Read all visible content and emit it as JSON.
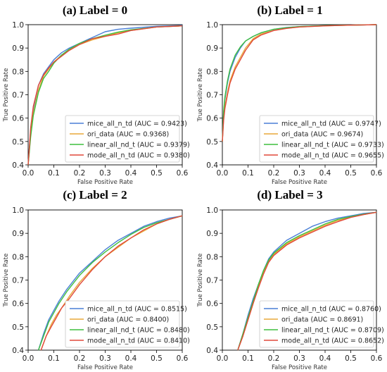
{
  "colors": {
    "mice_all_n_td": "#4a7fd6",
    "ori_data": "#e8a93a",
    "linear_all_nd_t": "#3fbf3f",
    "mode_all_n_td": "#e0483a"
  },
  "chart_data": [
    {
      "type": "line",
      "title": "(a) Label = 0",
      "xlabel": "False Positive Rate",
      "ylabel": "True Positive Rate",
      "xlim": [
        0.0,
        0.6
      ],
      "ylim": [
        0.4,
        1.0
      ],
      "xticks": [
        "0.0",
        "0.1",
        "0.2",
        "0.3",
        "0.4",
        "0.5",
        "0.6"
      ],
      "yticks": [
        "0.4",
        "0.5",
        "0.6",
        "0.7",
        "0.8",
        "0.9",
        "1.0"
      ],
      "legend_position": "lower-right",
      "series": [
        {
          "name": "mice_all_n_td (AUC = 0.9423)",
          "color_key": "mice_all_n_td",
          "x": [
            0.0,
            0.01,
            0.02,
            0.04,
            0.06,
            0.08,
            0.1,
            0.13,
            0.16,
            0.2,
            0.25,
            0.3,
            0.35,
            0.4,
            0.5,
            0.6
          ],
          "y": [
            0.4,
            0.55,
            0.64,
            0.74,
            0.79,
            0.82,
            0.85,
            0.88,
            0.9,
            0.92,
            0.945,
            0.97,
            0.98,
            0.985,
            0.993,
            0.997
          ]
        },
        {
          "name": "ori_data (AUC = 0.9368)",
          "color_key": "ori_data",
          "x": [
            0.0,
            0.01,
            0.02,
            0.04,
            0.06,
            0.08,
            0.1,
            0.13,
            0.16,
            0.2,
            0.25,
            0.3,
            0.35,
            0.4,
            0.5,
            0.6
          ],
          "y": [
            0.4,
            0.53,
            0.62,
            0.72,
            0.78,
            0.81,
            0.84,
            0.87,
            0.89,
            0.915,
            0.935,
            0.95,
            0.965,
            0.975,
            0.99,
            0.995
          ]
        },
        {
          "name": "linear_all_nd_t (AUC = 0.9379)",
          "color_key": "linear_all_nd_t",
          "x": [
            0.0,
            0.01,
            0.02,
            0.04,
            0.06,
            0.08,
            0.1,
            0.13,
            0.16,
            0.2,
            0.25,
            0.3,
            0.35,
            0.4,
            0.5,
            0.6
          ],
          "y": [
            0.4,
            0.52,
            0.61,
            0.71,
            0.77,
            0.8,
            0.835,
            0.87,
            0.895,
            0.92,
            0.94,
            0.955,
            0.968,
            0.978,
            0.99,
            0.995
          ]
        },
        {
          "name": "mode_all_n_td (AUC = 0.9380)",
          "color_key": "mode_all_n_td",
          "x": [
            0.0,
            0.01,
            0.02,
            0.04,
            0.06,
            0.08,
            0.1,
            0.13,
            0.16,
            0.2,
            0.25,
            0.3,
            0.35,
            0.4,
            0.5,
            0.6
          ],
          "y": [
            0.4,
            0.56,
            0.65,
            0.74,
            0.785,
            0.815,
            0.84,
            0.865,
            0.89,
            0.915,
            0.94,
            0.95,
            0.96,
            0.975,
            0.99,
            0.995
          ]
        }
      ]
    },
    {
      "type": "line",
      "title": "(b) Label = 1",
      "xlabel": "False Positive Rate",
      "ylabel": "True Positive Rate",
      "xlim": [
        0.0,
        0.6
      ],
      "ylim": [
        0.4,
        1.0
      ],
      "xticks": [
        "0.0",
        "0.1",
        "0.2",
        "0.3",
        "0.4",
        "0.5",
        "0.6"
      ],
      "yticks": [
        "0.4",
        "0.5",
        "0.6",
        "0.7",
        "0.8",
        "0.9",
        "1.0"
      ],
      "legend_position": "lower-right",
      "series": [
        {
          "name": "mice_all_n_td (AUC = 0.9747)",
          "color_key": "mice_all_n_td",
          "x": [
            0.0,
            0.005,
            0.01,
            0.02,
            0.03,
            0.05,
            0.07,
            0.09,
            0.12,
            0.15,
            0.2,
            0.25,
            0.3,
            0.4,
            0.5,
            0.6
          ],
          "y": [
            0.5,
            0.62,
            0.68,
            0.75,
            0.8,
            0.86,
            0.9,
            0.93,
            0.95,
            0.965,
            0.98,
            0.988,
            0.992,
            0.996,
            0.998,
            1.0
          ]
        },
        {
          "name": "ori_data (AUC = 0.9674)",
          "color_key": "ori_data",
          "x": [
            0.0,
            0.005,
            0.01,
            0.02,
            0.03,
            0.05,
            0.07,
            0.09,
            0.12,
            0.15,
            0.2,
            0.25,
            0.3,
            0.4,
            0.5,
            0.6
          ],
          "y": [
            0.5,
            0.6,
            0.65,
            0.71,
            0.76,
            0.82,
            0.86,
            0.9,
            0.94,
            0.96,
            0.975,
            0.985,
            0.99,
            0.995,
            0.998,
            1.0
          ]
        },
        {
          "name": "linear_all_nd_t (AUC = 0.9733)",
          "color_key": "linear_all_nd_t",
          "x": [
            0.0,
            0.005,
            0.01,
            0.02,
            0.03,
            0.05,
            0.07,
            0.09,
            0.12,
            0.15,
            0.2,
            0.25,
            0.3,
            0.4,
            0.5,
            0.6
          ],
          "y": [
            0.5,
            0.63,
            0.69,
            0.76,
            0.81,
            0.87,
            0.905,
            0.93,
            0.95,
            0.965,
            0.98,
            0.987,
            0.992,
            0.996,
            0.998,
            1.0
          ]
        },
        {
          "name": "mode_all_n_td (AUC = 0.9655)",
          "color_key": "mode_all_n_td",
          "x": [
            0.0,
            0.005,
            0.01,
            0.02,
            0.03,
            0.05,
            0.07,
            0.09,
            0.12,
            0.15,
            0.2,
            0.25,
            0.3,
            0.4,
            0.5,
            0.6
          ],
          "y": [
            0.5,
            0.59,
            0.64,
            0.7,
            0.75,
            0.81,
            0.85,
            0.89,
            0.935,
            0.955,
            0.975,
            0.984,
            0.99,
            0.995,
            0.998,
            1.0
          ]
        }
      ]
    },
    {
      "type": "line",
      "title": "(c) Label = 2",
      "xlabel": "False Positive Rate",
      "ylabel": "True Positive Rate",
      "xlim": [
        0.0,
        0.6
      ],
      "ylim": [
        0.4,
        1.0
      ],
      "xticks": [
        "0.0",
        "0.1",
        "0.2",
        "0.3",
        "0.4",
        "0.5",
        "0.6"
      ],
      "yticks": [
        "0.4",
        "0.5",
        "0.6",
        "0.7",
        "0.8",
        "0.9",
        "1.0"
      ],
      "legend_position": "lower-right",
      "series": [
        {
          "name": "mice_all_n_td (AUC = 0.8515)",
          "color_key": "mice_all_n_td",
          "x": [
            0.04,
            0.06,
            0.08,
            0.1,
            0.12,
            0.15,
            0.2,
            0.25,
            0.3,
            0.35,
            0.4,
            0.45,
            0.5,
            0.55,
            0.6
          ],
          "y": [
            0.4,
            0.47,
            0.53,
            0.57,
            0.61,
            0.66,
            0.73,
            0.78,
            0.83,
            0.87,
            0.9,
            0.93,
            0.95,
            0.965,
            0.975
          ]
        },
        {
          "name": "ori_data (AUC = 0.8400)",
          "color_key": "ori_data",
          "x": [
            0.05,
            0.07,
            0.09,
            0.11,
            0.13,
            0.16,
            0.2,
            0.25,
            0.3,
            0.35,
            0.4,
            0.45,
            0.5,
            0.55,
            0.6
          ],
          "y": [
            0.4,
            0.46,
            0.51,
            0.55,
            0.58,
            0.63,
            0.69,
            0.75,
            0.8,
            0.84,
            0.88,
            0.91,
            0.94,
            0.96,
            0.975
          ]
        },
        {
          "name": "linear_all_nd_t (AUC = 0.8480)",
          "color_key": "linear_all_nd_t",
          "x": [
            0.04,
            0.06,
            0.08,
            0.1,
            0.12,
            0.15,
            0.2,
            0.25,
            0.3,
            0.35,
            0.4,
            0.45,
            0.5,
            0.55,
            0.6
          ],
          "y": [
            0.4,
            0.46,
            0.52,
            0.56,
            0.6,
            0.65,
            0.72,
            0.775,
            0.82,
            0.86,
            0.895,
            0.925,
            0.945,
            0.96,
            0.975
          ]
        },
        {
          "name": "mode_all_n_td (AUC = 0.8410)",
          "color_key": "mode_all_n_td",
          "x": [
            0.05,
            0.07,
            0.09,
            0.11,
            0.13,
            0.16,
            0.2,
            0.25,
            0.3,
            0.35,
            0.4,
            0.45,
            0.5,
            0.55,
            0.6
          ],
          "y": [
            0.4,
            0.46,
            0.5,
            0.54,
            0.58,
            0.62,
            0.68,
            0.745,
            0.8,
            0.845,
            0.88,
            0.915,
            0.94,
            0.96,
            0.975
          ]
        }
      ]
    },
    {
      "type": "line",
      "title": "(d) Label = 3",
      "xlabel": "False Positive Rate",
      "ylabel": "True Positive Rate",
      "xlim": [
        0.0,
        0.6
      ],
      "ylim": [
        0.4,
        1.0
      ],
      "xticks": [
        "0.0",
        "0.1",
        "0.2",
        "0.3",
        "0.4",
        "0.5",
        "0.6"
      ],
      "yticks": [
        "0.4",
        "0.5",
        "0.6",
        "0.7",
        "0.8",
        "0.9",
        "1.0"
      ],
      "legend_position": "lower-right",
      "series": [
        {
          "name": "mice_all_n_td (AUC = 0.8760)",
          "color_key": "mice_all_n_td",
          "x": [
            0.06,
            0.08,
            0.1,
            0.12,
            0.14,
            0.16,
            0.18,
            0.2,
            0.25,
            0.3,
            0.35,
            0.4,
            0.45,
            0.5,
            0.55,
            0.6
          ],
          "y": [
            0.4,
            0.47,
            0.55,
            0.62,
            0.68,
            0.74,
            0.79,
            0.82,
            0.87,
            0.9,
            0.93,
            0.95,
            0.965,
            0.975,
            0.985,
            0.99
          ]
        },
        {
          "name": "ori_data (AUC = 0.8691)",
          "color_key": "ori_data",
          "x": [
            0.06,
            0.08,
            0.1,
            0.12,
            0.14,
            0.16,
            0.18,
            0.2,
            0.25,
            0.3,
            0.35,
            0.4,
            0.45,
            0.5,
            0.55,
            0.6
          ],
          "y": [
            0.4,
            0.46,
            0.53,
            0.6,
            0.67,
            0.73,
            0.78,
            0.81,
            0.855,
            0.885,
            0.91,
            0.935,
            0.955,
            0.97,
            0.98,
            0.99
          ]
        },
        {
          "name": "linear_all_nd_t (AUC = 0.8709)",
          "color_key": "linear_all_nd_t",
          "x": [
            0.06,
            0.08,
            0.1,
            0.12,
            0.14,
            0.16,
            0.18,
            0.2,
            0.25,
            0.3,
            0.35,
            0.4,
            0.45,
            0.5,
            0.55,
            0.6
          ],
          "y": [
            0.4,
            0.47,
            0.54,
            0.61,
            0.68,
            0.74,
            0.785,
            0.815,
            0.86,
            0.89,
            0.915,
            0.94,
            0.96,
            0.972,
            0.982,
            0.99
          ]
        },
        {
          "name": "mode_all_n_td (AUC = 0.8652)",
          "color_key": "mode_all_n_td",
          "x": [
            0.06,
            0.08,
            0.1,
            0.12,
            0.14,
            0.16,
            0.18,
            0.2,
            0.25,
            0.3,
            0.35,
            0.4,
            0.45,
            0.5,
            0.55,
            0.6
          ],
          "y": [
            0.4,
            0.46,
            0.53,
            0.6,
            0.665,
            0.725,
            0.775,
            0.805,
            0.85,
            0.88,
            0.905,
            0.93,
            0.95,
            0.968,
            0.98,
            0.99
          ]
        }
      ]
    }
  ]
}
